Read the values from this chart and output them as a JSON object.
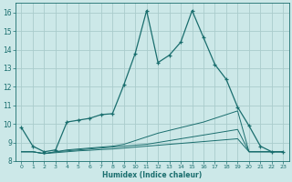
{
  "background_color": "#cce8e8",
  "grid_color": "#aacccc",
  "line_color": "#1a6e6e",
  "xlabel": "Humidex (Indice chaleur)",
  "xlim": [
    -0.5,
    23.5
  ],
  "ylim": [
    8,
    16.5
  ],
  "yticks": [
    8,
    9,
    10,
    11,
    12,
    13,
    14,
    15,
    16
  ],
  "xticks": [
    0,
    1,
    2,
    3,
    4,
    5,
    6,
    7,
    8,
    9,
    10,
    11,
    12,
    13,
    14,
    15,
    16,
    17,
    18,
    19,
    20,
    21,
    22,
    23
  ],
  "line1_x": [
    0,
    1,
    2,
    3,
    4,
    5,
    6,
    7,
    8,
    9,
    10,
    11,
    12,
    13,
    14,
    15,
    16,
    17,
    18,
    19,
    20,
    21,
    22,
    23
  ],
  "line1_y": [
    9.8,
    8.8,
    8.5,
    8.6,
    10.1,
    10.2,
    10.3,
    10.5,
    10.55,
    12.1,
    13.8,
    16.1,
    13.3,
    13.7,
    14.4,
    16.1,
    14.65,
    13.2,
    12.4,
    10.9,
    9.9,
    8.8,
    8.5,
    8.5
  ],
  "line2_x": [
    0,
    1,
    2,
    3,
    4,
    5,
    6,
    7,
    8,
    9,
    10,
    11,
    12,
    13,
    14,
    15,
    16,
    17,
    18,
    19,
    20,
    21,
    22,
    23
  ],
  "line2_y": [
    8.5,
    8.5,
    8.4,
    8.5,
    8.6,
    8.65,
    8.7,
    8.75,
    8.8,
    8.9,
    9.1,
    9.3,
    9.5,
    9.65,
    9.8,
    9.95,
    10.1,
    10.3,
    10.5,
    10.7,
    8.5,
    8.5,
    8.5,
    8.5
  ],
  "line3_x": [
    0,
    1,
    2,
    3,
    4,
    5,
    6,
    7,
    8,
    9,
    10,
    11,
    12,
    13,
    14,
    15,
    16,
    17,
    18,
    19,
    20,
    21,
    22,
    23
  ],
  "line3_y": [
    8.5,
    8.5,
    8.4,
    8.5,
    8.55,
    8.6,
    8.65,
    8.7,
    8.75,
    8.8,
    8.85,
    8.9,
    9.0,
    9.1,
    9.2,
    9.3,
    9.4,
    9.5,
    9.6,
    9.7,
    8.5,
    8.5,
    8.5,
    8.5
  ],
  "line4_x": [
    0,
    1,
    2,
    3,
    4,
    5,
    6,
    7,
    8,
    9,
    10,
    11,
    12,
    13,
    14,
    15,
    16,
    17,
    18,
    19,
    20,
    21,
    22,
    23
  ],
  "line4_y": [
    8.5,
    8.5,
    8.4,
    8.45,
    8.5,
    8.55,
    8.58,
    8.62,
    8.65,
    8.7,
    8.75,
    8.8,
    8.85,
    8.9,
    8.95,
    9.0,
    9.05,
    9.1,
    9.15,
    9.2,
    8.5,
    8.5,
    8.5,
    8.5
  ]
}
